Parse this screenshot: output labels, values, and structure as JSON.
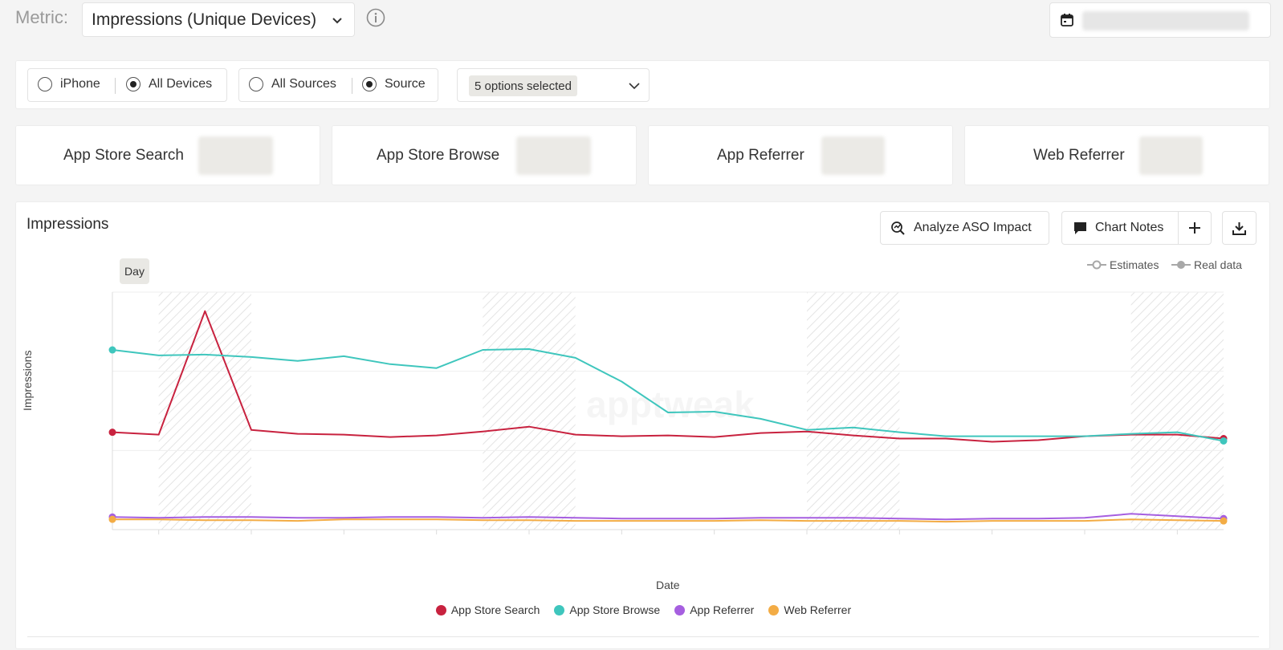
{
  "metric": {
    "label": "Metric:",
    "selected": "Impressions (Unique Devices)"
  },
  "filters": {
    "device_options": [
      "iPhone",
      "All Devices"
    ],
    "device_selected": "All Devices",
    "source_options": [
      "All Sources",
      "Source"
    ],
    "source_selected": "Source",
    "multiselect_label": "5 options selected"
  },
  "summary_cards": [
    {
      "label": "App Store Search"
    },
    {
      "label": "App Store Browse"
    },
    {
      "label": "App Referrer"
    },
    {
      "label": "Web Referrer"
    }
  ],
  "panel": {
    "title": "Impressions",
    "analyze_button": "Analyze ASO Impact",
    "notes_button": "Chart Notes",
    "add_icon": "plus-icon",
    "download_icon": "download-icon",
    "granularity": "Day",
    "legend_estimates": "Estimates",
    "legend_real": "Real data"
  },
  "colors": {
    "search": "#c8223f",
    "browse": "#3fc6bd",
    "referrer": "#a65fe0",
    "web": "#f3ac45"
  },
  "chart_data": {
    "type": "line",
    "xlabel": "Date",
    "ylabel": "Impressions",
    "x": [
      0,
      1,
      2,
      3,
      4,
      5,
      6,
      7,
      8,
      9,
      10,
      11,
      12,
      13,
      14,
      15,
      16,
      17,
      18,
      19,
      20,
      21,
      22,
      23,
      24
    ],
    "ylim": [
      0,
      30
    ],
    "grid": true,
    "legend_position": "bottom",
    "series": [
      {
        "name": "App Store Search",
        "color": "#c8223f",
        "values": [
          12.3,
          12.0,
          27.6,
          12.6,
          12.1,
          12.0,
          11.7,
          11.9,
          12.4,
          13.0,
          12.0,
          11.8,
          11.9,
          11.7,
          12.2,
          12.4,
          11.9,
          11.5,
          11.5,
          11.1,
          11.3,
          11.8,
          12.0,
          12.0,
          11.5
        ]
      },
      {
        "name": "App Store Browse",
        "color": "#3fc6bd",
        "values": [
          22.7,
          22.0,
          22.1,
          21.8,
          21.3,
          21.9,
          20.9,
          20.4,
          22.7,
          22.8,
          21.7,
          18.7,
          14.8,
          14.9,
          14.0,
          12.6,
          12.9,
          12.3,
          11.8,
          11.8,
          11.8,
          11.8,
          12.1,
          12.3,
          11.2
        ]
      },
      {
        "name": "App Referrer",
        "color": "#a65fe0",
        "values": [
          1.6,
          1.5,
          1.6,
          1.6,
          1.5,
          1.5,
          1.6,
          1.6,
          1.5,
          1.6,
          1.5,
          1.4,
          1.4,
          1.4,
          1.5,
          1.5,
          1.5,
          1.4,
          1.3,
          1.4,
          1.4,
          1.5,
          2.0,
          1.7,
          1.4
        ]
      },
      {
        "name": "Web Referrer",
        "color": "#f3ac45",
        "values": [
          1.3,
          1.3,
          1.2,
          1.2,
          1.1,
          1.3,
          1.3,
          1.3,
          1.2,
          1.2,
          1.1,
          1.1,
          1.1,
          1.1,
          1.2,
          1.1,
          1.1,
          1.1,
          1.0,
          1.1,
          1.1,
          1.1,
          1.3,
          1.2,
          1.1
        ]
      }
    ]
  }
}
